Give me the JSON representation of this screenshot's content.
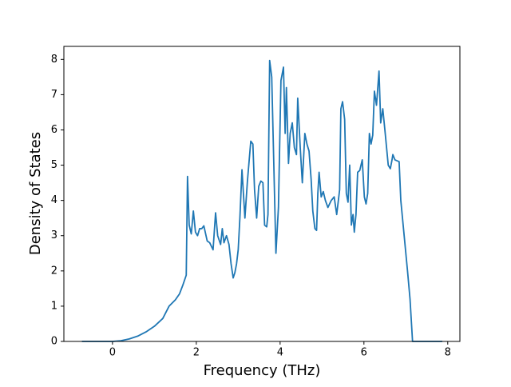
{
  "chart_data": {
    "type": "line",
    "xlabel": "Frequency (THz)",
    "ylabel": "Density of States",
    "xlim": [
      -1.16,
      8.29
    ],
    "ylim": [
      0,
      8.37
    ],
    "xticks": [
      0,
      2,
      4,
      6,
      8
    ],
    "yticks": [
      0,
      1,
      2,
      3,
      4,
      5,
      6,
      7,
      8
    ],
    "series": [
      {
        "color": "#1f77b4",
        "x": [
          -0.73,
          0,
          0.2,
          0.4,
          0.6,
          0.8,
          1.0,
          1.2,
          1.35,
          1.5,
          1.6,
          1.68,
          1.76,
          1.79,
          1.83,
          1.88,
          1.93,
          1.98,
          2.03,
          2.08,
          2.13,
          2.18,
          2.26,
          2.32,
          2.4,
          2.46,
          2.51,
          2.58,
          2.62,
          2.66,
          2.72,
          2.78,
          2.83,
          2.88,
          2.92,
          2.96,
          3.0,
          3.04,
          3.09,
          3.16,
          3.22,
          3.3,
          3.35,
          3.39,
          3.44,
          3.49,
          3.54,
          3.59,
          3.63,
          3.68,
          3.71,
          3.75,
          3.8,
          3.9,
          3.96,
          4.02,
          4.08,
          4.12,
          4.15,
          4.2,
          4.24,
          4.29,
          4.34,
          4.39,
          4.42,
          4.48,
          4.53,
          4.59,
          4.64,
          4.69,
          4.74,
          4.78,
          4.83,
          4.87,
          4.9,
          4.93,
          4.98,
          5.03,
          5.08,
          5.14,
          5.22,
          5.29,
          5.35,
          5.39,
          5.42,
          5.45,
          5.49,
          5.54,
          5.58,
          5.62,
          5.66,
          5.7,
          5.74,
          5.77,
          5.81,
          5.85,
          5.9,
          5.96,
          6.01,
          6.05,
          6.09,
          6.13,
          6.17,
          6.21,
          6.25,
          6.3,
          6.36,
          6.4,
          6.45,
          6.5,
          6.58,
          6.63,
          6.67,
          6.69,
          6.74,
          6.84,
          6.88,
          6.96,
          7.04,
          7.1,
          7.16,
          7.87
        ],
        "values": [
          0,
          0,
          0.02,
          0.07,
          0.15,
          0.27,
          0.43,
          0.65,
          1.0,
          1.18,
          1.35,
          1.6,
          1.88,
          4.68,
          3.3,
          3.05,
          3.7,
          3.1,
          3.0,
          3.2,
          3.2,
          3.28,
          2.85,
          2.8,
          2.6,
          3.65,
          3.0,
          2.75,
          3.2,
          2.8,
          3.0,
          2.75,
          2.2,
          1.8,
          1.95,
          2.2,
          2.6,
          3.5,
          4.87,
          3.5,
          4.55,
          5.68,
          5.6,
          4.3,
          3.5,
          4.4,
          4.55,
          4.5,
          3.3,
          3.25,
          3.6,
          7.97,
          7.5,
          2.5,
          3.8,
          7.4,
          7.78,
          5.9,
          7.2,
          5.05,
          5.9,
          6.2,
          5.5,
          5.3,
          6.9,
          5.5,
          4.5,
          5.9,
          5.6,
          5.4,
          4.6,
          3.7,
          3.2,
          3.15,
          4.2,
          4.8,
          4.1,
          4.25,
          4.0,
          3.8,
          4.0,
          4.1,
          3.6,
          4.0,
          4.3,
          6.6,
          6.8,
          6.3,
          4.2,
          3.95,
          5.0,
          3.3,
          3.6,
          3.1,
          3.6,
          4.8,
          4.85,
          5.15,
          4.1,
          3.9,
          4.2,
          5.9,
          5.6,
          5.85,
          7.1,
          6.7,
          7.67,
          6.2,
          6.6,
          6.0,
          5.0,
          4.9,
          5.15,
          5.3,
          5.15,
          5.1,
          4.0,
          3.0,
          2.0,
          1.2,
          0,
          0
        ]
      }
    ]
  }
}
